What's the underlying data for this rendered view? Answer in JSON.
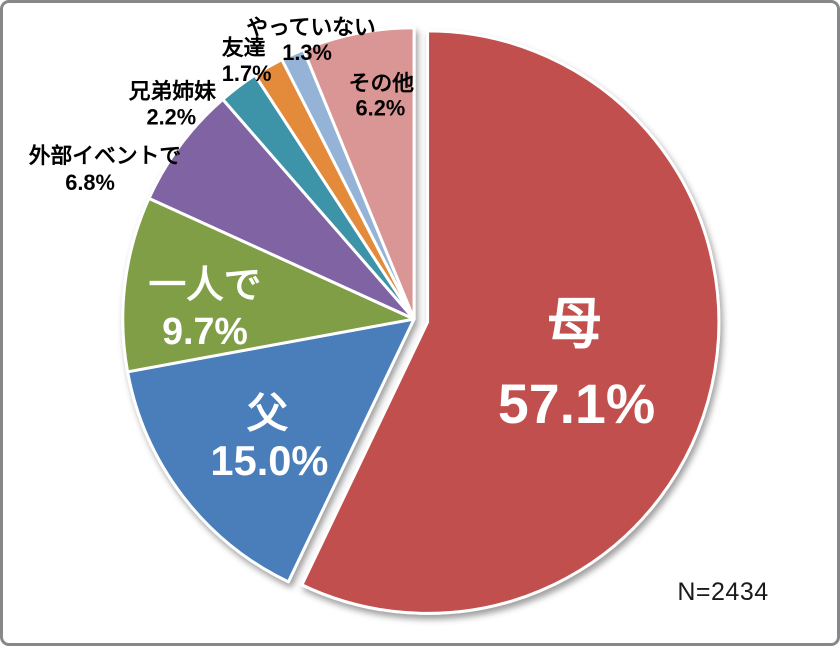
{
  "chart_data": {
    "type": "pie",
    "title": "",
    "categories": [
      "母",
      "父",
      "一人で",
      "外部イベントで",
      "兄弟姉妹",
      "友達",
      "やっていない",
      "その他"
    ],
    "values": [
      57.1,
      15.0,
      9.7,
      6.8,
      2.2,
      1.7,
      1.3,
      6.2
    ],
    "value_labels": [
      "57.1%",
      "15.0%",
      "9.7%",
      "6.8%",
      "2.2%",
      "1.7%",
      "1.3%",
      "6.2%"
    ],
    "colors": [
      "#c1504e",
      "#4a7ebb",
      "#7f9e44",
      "#8064a2",
      "#3e93a8",
      "#e48b3b",
      "#95b3d7",
      "#d99694"
    ],
    "slice_border_color": "#ffffff",
    "start_angle_deg": 0,
    "direction": "clockwise",
    "exploded_slice_index": 0,
    "labels_inside": [
      true,
      true,
      true,
      false,
      false,
      false,
      false,
      false
    ],
    "inside_label_color": "#ffffff",
    "outside_label_color": "#000000",
    "legend_position": "none",
    "annotation": "N=2434"
  },
  "annotation": {
    "sample_size": "N=2434"
  }
}
